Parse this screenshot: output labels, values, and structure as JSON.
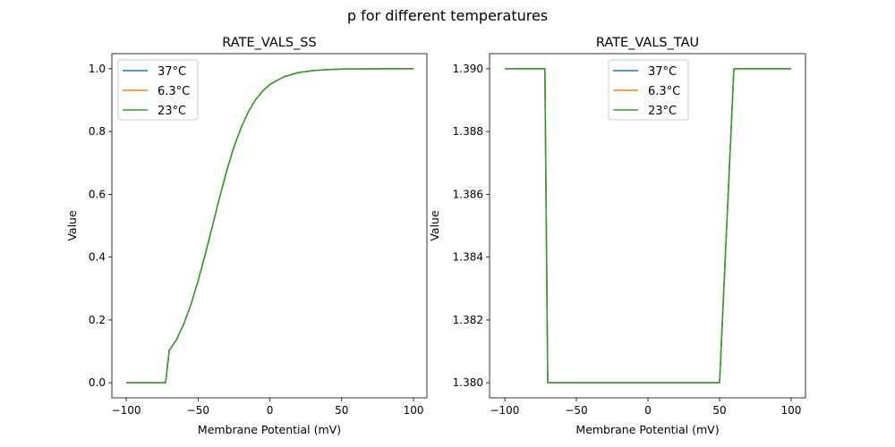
{
  "figure_title": "p for different temperatures",
  "chart_data": [
    {
      "type": "line",
      "title": "RATE_VALS_SS",
      "xlabel": "Membrane Potential (mV)",
      "ylabel": "Value",
      "xlim": [
        -110,
        109.3
      ],
      "ylim": [
        -0.048,
        1.048
      ],
      "xticks": [
        -100,
        -50,
        0,
        50,
        100
      ],
      "xtick_labels": [
        "−100",
        "−50",
        "0",
        "50",
        "100"
      ],
      "yticks": [
        0.0,
        0.2,
        0.4,
        0.6,
        0.8,
        1.0
      ],
      "ytick_labels": [
        "0.0",
        "0.2",
        "0.4",
        "0.6",
        "0.8",
        "1.0"
      ],
      "legend_position": "upper-left",
      "series": [
        {
          "name": "37°C",
          "color": "#1f77b4",
          "x": [
            -100,
            -72.6,
            -70,
            -65,
            -60,
            -55,
            -50,
            -45,
            -40,
            -35,
            -30,
            -25,
            -20,
            -15,
            -10,
            -5,
            0,
            10,
            20,
            30,
            40,
            50,
            60,
            80,
            100
          ],
          "y": [
            0,
            0,
            0.104,
            0.137,
            0.187,
            0.249,
            0.324,
            0.409,
            0.5,
            0.591,
            0.676,
            0.751,
            0.813,
            0.863,
            0.901,
            0.929,
            0.95,
            0.975,
            0.988,
            0.994,
            0.997,
            0.9987,
            0.9994,
            0.9999,
            1.0
          ]
        },
        {
          "name": "6.3°C",
          "color": "#ff7f0e",
          "x": [
            -100,
            -72.6,
            -70,
            -65,
            -60,
            -55,
            -50,
            -45,
            -40,
            -35,
            -30,
            -25,
            -20,
            -15,
            -10,
            -5,
            0,
            10,
            20,
            30,
            40,
            50,
            60,
            80,
            100
          ],
          "y": [
            0,
            0,
            0.104,
            0.137,
            0.187,
            0.249,
            0.324,
            0.409,
            0.5,
            0.591,
            0.676,
            0.751,
            0.813,
            0.863,
            0.901,
            0.929,
            0.95,
            0.975,
            0.988,
            0.994,
            0.997,
            0.9987,
            0.9994,
            0.9999,
            1.0
          ]
        },
        {
          "name": "23°C",
          "color": "#2ca02c",
          "x": [
            -100,
            -72.6,
            -70,
            -65,
            -60,
            -55,
            -50,
            -45,
            -40,
            -35,
            -30,
            -25,
            -20,
            -15,
            -10,
            -5,
            0,
            10,
            20,
            30,
            40,
            50,
            60,
            80,
            100
          ],
          "y": [
            0,
            0,
            0.104,
            0.137,
            0.187,
            0.249,
            0.324,
            0.409,
            0.5,
            0.591,
            0.676,
            0.751,
            0.813,
            0.863,
            0.901,
            0.929,
            0.95,
            0.975,
            0.988,
            0.994,
            0.997,
            0.9987,
            0.9994,
            0.9999,
            1.0
          ]
        }
      ]
    },
    {
      "type": "line",
      "title": "RATE_VALS_TAU",
      "xlabel": "Membrane Potential (mV)",
      "ylabel": "Value",
      "xlim": [
        -110.6,
        110
      ],
      "ylim": [
        1.37952,
        1.39048
      ],
      "xticks": [
        -100,
        -50,
        0,
        50,
        100
      ],
      "xtick_labels": [
        "−100",
        "−50",
        "0",
        "50",
        "100"
      ],
      "yticks": [
        1.38,
        1.382,
        1.384,
        1.386,
        1.388,
        1.39
      ],
      "ytick_labels": [
        "1.380",
        "1.382",
        "1.384",
        "1.386",
        "1.388",
        "1.390"
      ],
      "legend_position": "upper-center",
      "series": [
        {
          "name": "37°C",
          "color": "#1f77b4",
          "x": [
            -100,
            -72,
            -70,
            50,
            60,
            100
          ],
          "y": [
            1.39,
            1.39,
            1.38,
            1.38,
            1.39,
            1.39
          ]
        },
        {
          "name": "6.3°C",
          "color": "#ff7f0e",
          "x": [
            -100,
            -72,
            -70,
            50,
            60,
            100
          ],
          "y": [
            1.39,
            1.39,
            1.38,
            1.38,
            1.39,
            1.39
          ]
        },
        {
          "name": "23°C",
          "color": "#2ca02c",
          "x": [
            -100,
            -72,
            -70,
            50,
            60,
            100
          ],
          "y": [
            1.39,
            1.39,
            1.38,
            1.38,
            1.39,
            1.39
          ]
        }
      ]
    }
  ]
}
